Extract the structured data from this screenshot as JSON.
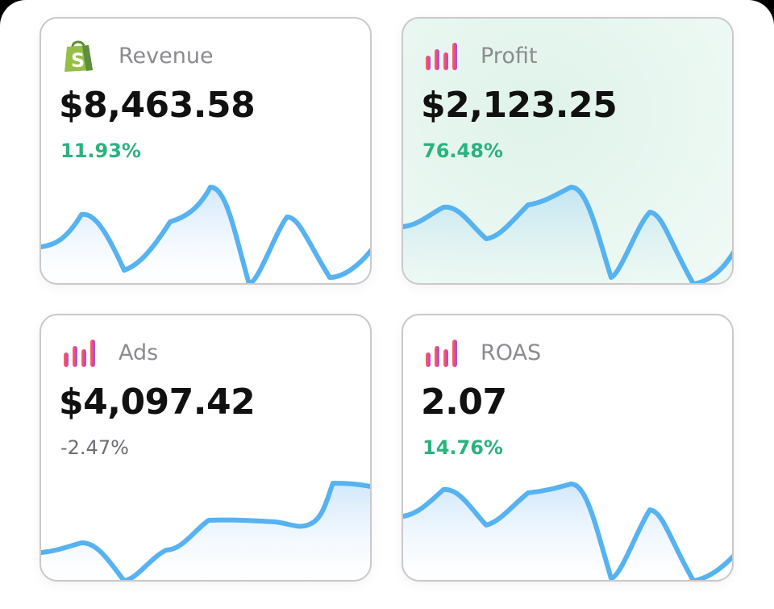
{
  "colors": {
    "positive": "#2bb27f",
    "negative": "#6d6d72",
    "line": "#56b2f0",
    "fill_top": "#cfe6fb",
    "card_highlight": "#e6f6ef"
  },
  "cards": [
    {
      "label": "Revenue",
      "value": "$8,463.58",
      "change": "11.93%",
      "trend": "up",
      "icon": "shopify-bag-icon"
    },
    {
      "label": "Profit",
      "value": "$2,123.25",
      "change": "76.48%",
      "trend": "up",
      "icon": "bar-chart-icon"
    },
    {
      "label": "Ads",
      "value": "$4,097.42",
      "change": "-2.47%",
      "trend": "down",
      "icon": "bar-chart-icon"
    },
    {
      "label": "ROAS",
      "value": "2.07",
      "change": "14.76%",
      "trend": "up",
      "icon": "bar-chart-icon"
    }
  ]
}
